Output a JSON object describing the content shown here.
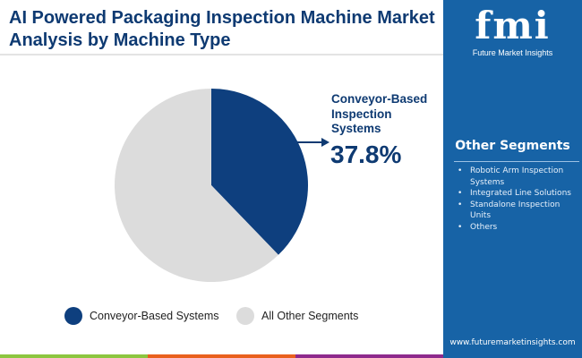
{
  "title": "AI Powered Packaging Inspection Machine Market Analysis by Machine Type",
  "logo": {
    "text": "fmi",
    "subtitle": "Future Market Insights"
  },
  "sidebar": {
    "title": "Other Segments",
    "items": [
      "Robotic Arm Inspection Systems",
      "Integrated Line Solutions",
      "Standalone Inspection Units",
      "Others"
    ],
    "url": "www.futuremarketinsights.com"
  },
  "colors": {
    "primary": "#0e3f7e",
    "other": "#dcdcdc",
    "sidebar": "#1763a6",
    "stripe": [
      "#8cc63f",
      "#e9601d",
      "#8e2a8c",
      "#1763a6"
    ]
  },
  "chart_data": {
    "type": "pie",
    "slices": [
      {
        "label": "Conveyor-Based Systems",
        "value": 37.8,
        "color": "#0e3f7e"
      },
      {
        "label": "All Other Segments",
        "value": 62.2,
        "color": "#dcdcdc"
      }
    ],
    "annotation": {
      "label": "Conveyor-Based Inspection Systems",
      "value": "37.8%"
    },
    "legend": [
      "Conveyor-Based Systems",
      "All Other Segments"
    ],
    "legend_position": "bottom"
  }
}
